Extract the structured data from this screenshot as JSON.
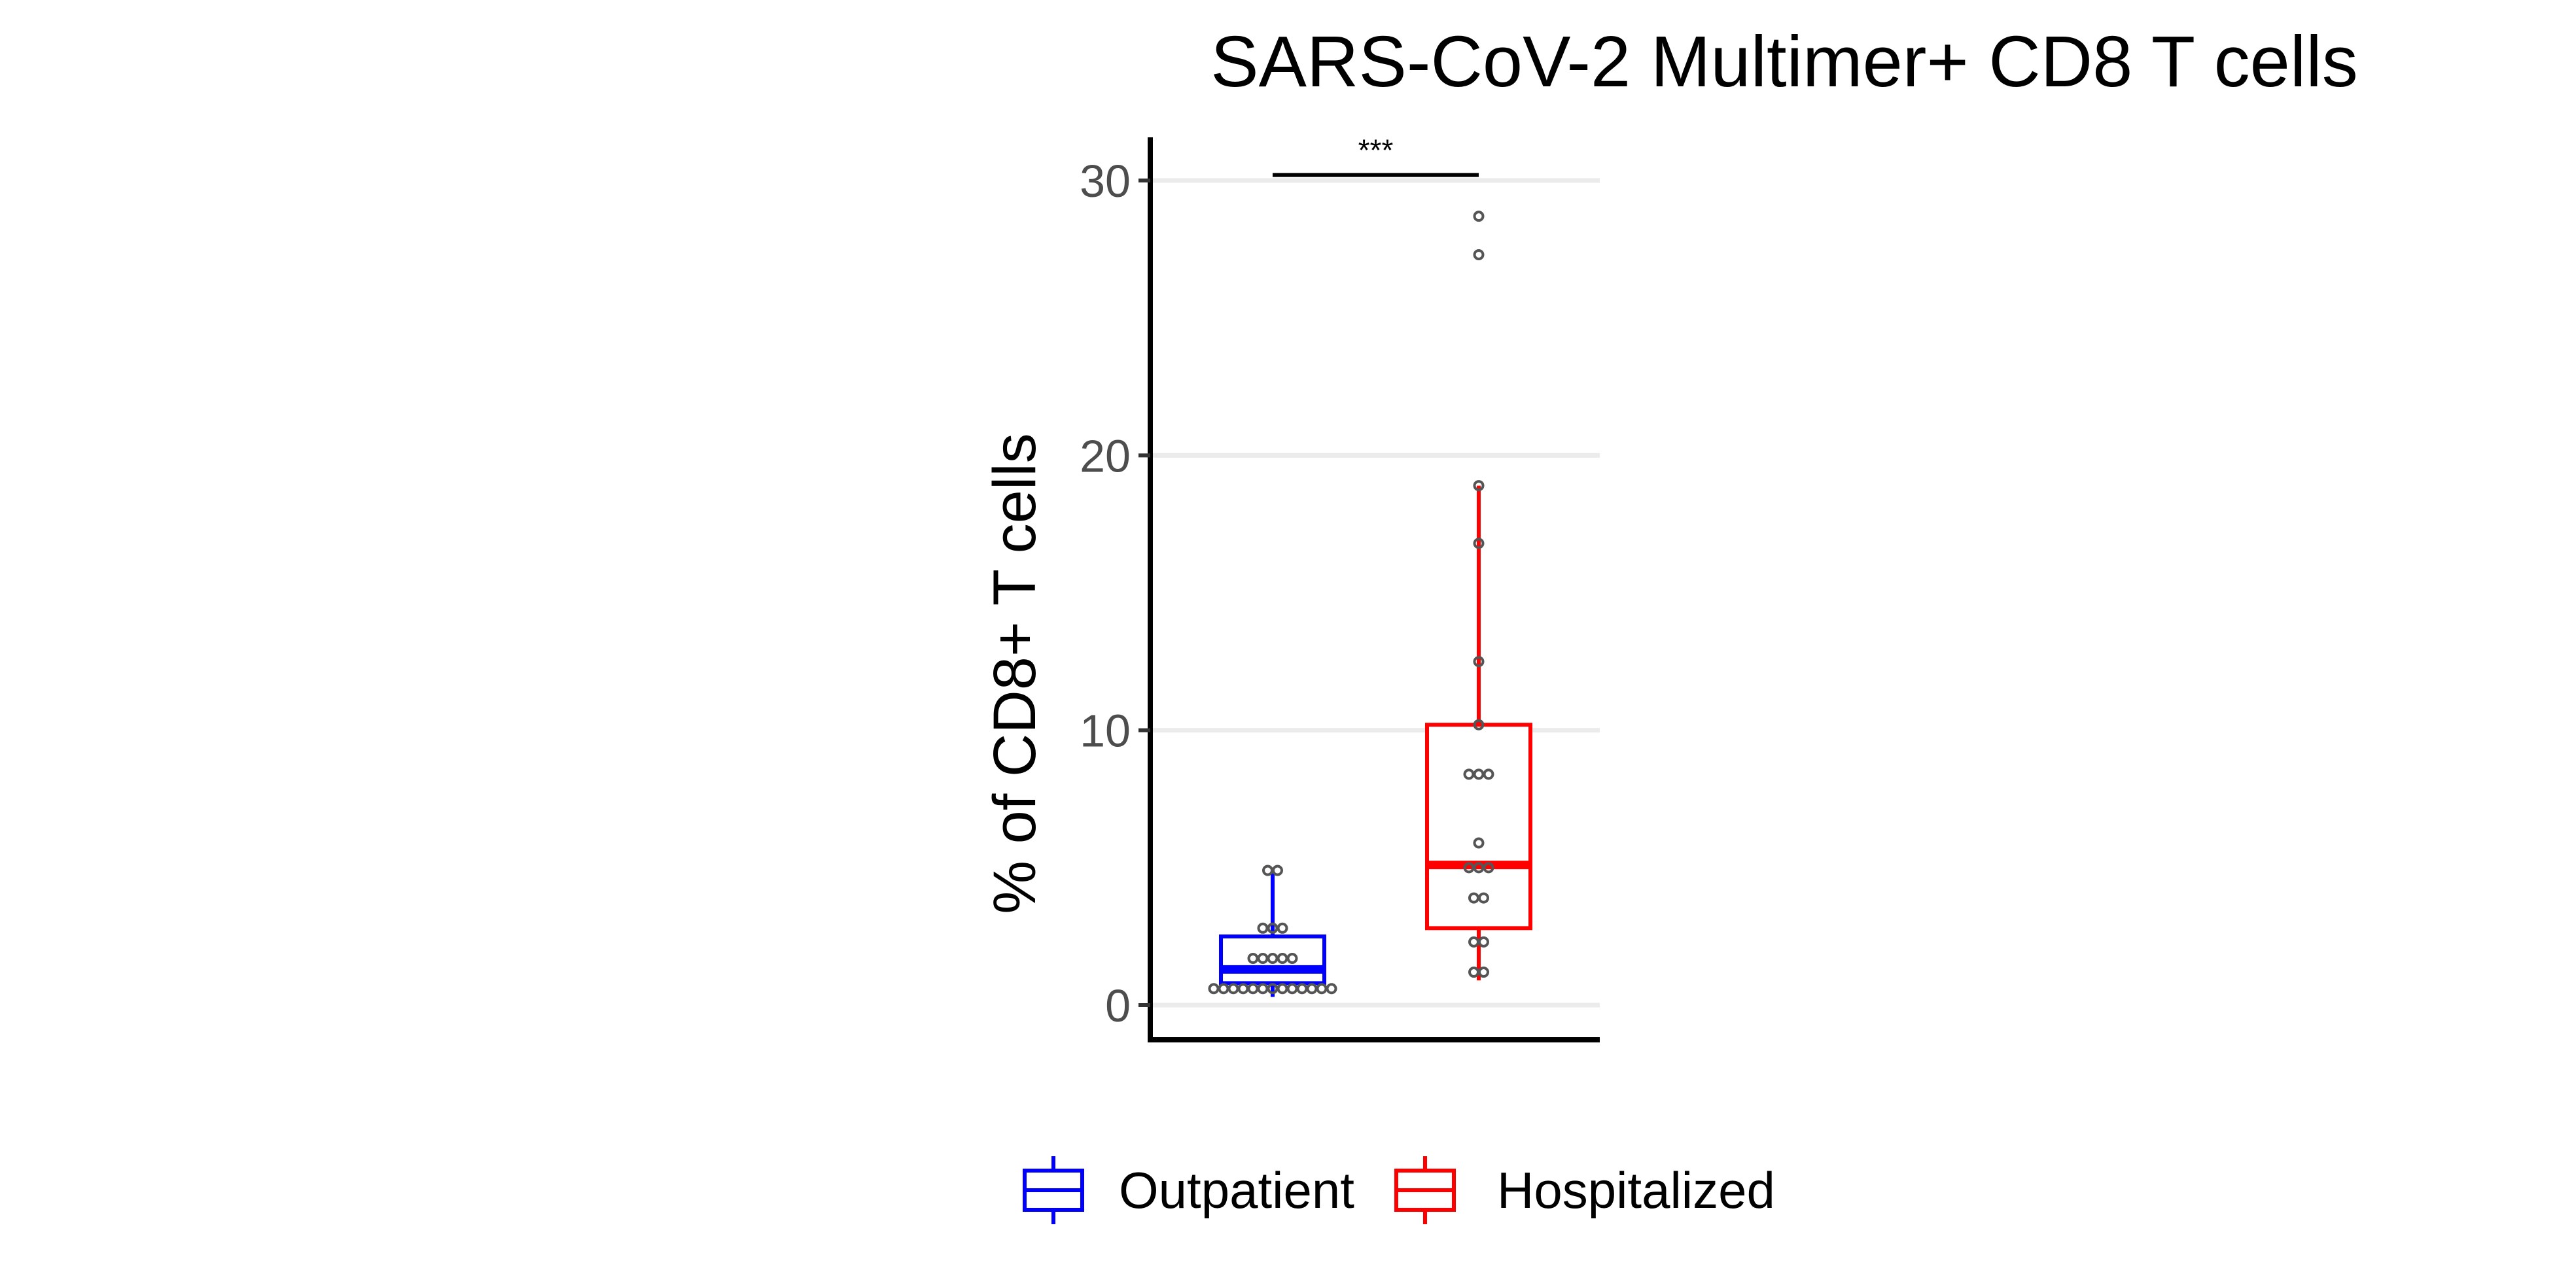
{
  "chart_data": {
    "type": "box",
    "title": "SARS-CoV-2 Multimer+ CD8 T cells",
    "xlabel": "",
    "ylabel": "% of CD8+ T cells",
    "ylim": [
      -1.3,
      31.5
    ],
    "yticks": [
      0,
      10,
      20,
      30
    ],
    "ytick_labels": [
      "0",
      "10",
      "20",
      "30"
    ],
    "grid": "horizontal major",
    "legend_position": "bottom",
    "significance": {
      "groups": [
        "Outpatient",
        "Hospitalized"
      ],
      "y": 30.2,
      "label": "***"
    },
    "series": [
      {
        "name": "Outpatient",
        "color": "#0000ff",
        "whisker_low": 0.3,
        "q1": 0.8,
        "median": 1.3,
        "q3": 2.5,
        "whisker_high": 4.8,
        "points": [
          0.6,
          0.6,
          0.6,
          0.6,
          0.6,
          0.6,
          0.6,
          0.6,
          0.6,
          0.6,
          0.6,
          0.6,
          0.6,
          1.7,
          1.7,
          1.7,
          1.7,
          1.7,
          2.8,
          2.8,
          2.8,
          4.9,
          4.9
        ]
      },
      {
        "name": "Hospitalized",
        "color": "#ff0000",
        "whisker_low": 0.9,
        "q1": 2.8,
        "median": 5.1,
        "q3": 10.2,
        "whisker_high": 18.9,
        "points": [
          1.2,
          1.2,
          2.3,
          2.3,
          3.9,
          3.9,
          5.0,
          5.0,
          5.0,
          5.9,
          8.4,
          8.4,
          8.4,
          10.2,
          12.5,
          16.8,
          18.9,
          27.3,
          28.7
        ]
      }
    ]
  }
}
